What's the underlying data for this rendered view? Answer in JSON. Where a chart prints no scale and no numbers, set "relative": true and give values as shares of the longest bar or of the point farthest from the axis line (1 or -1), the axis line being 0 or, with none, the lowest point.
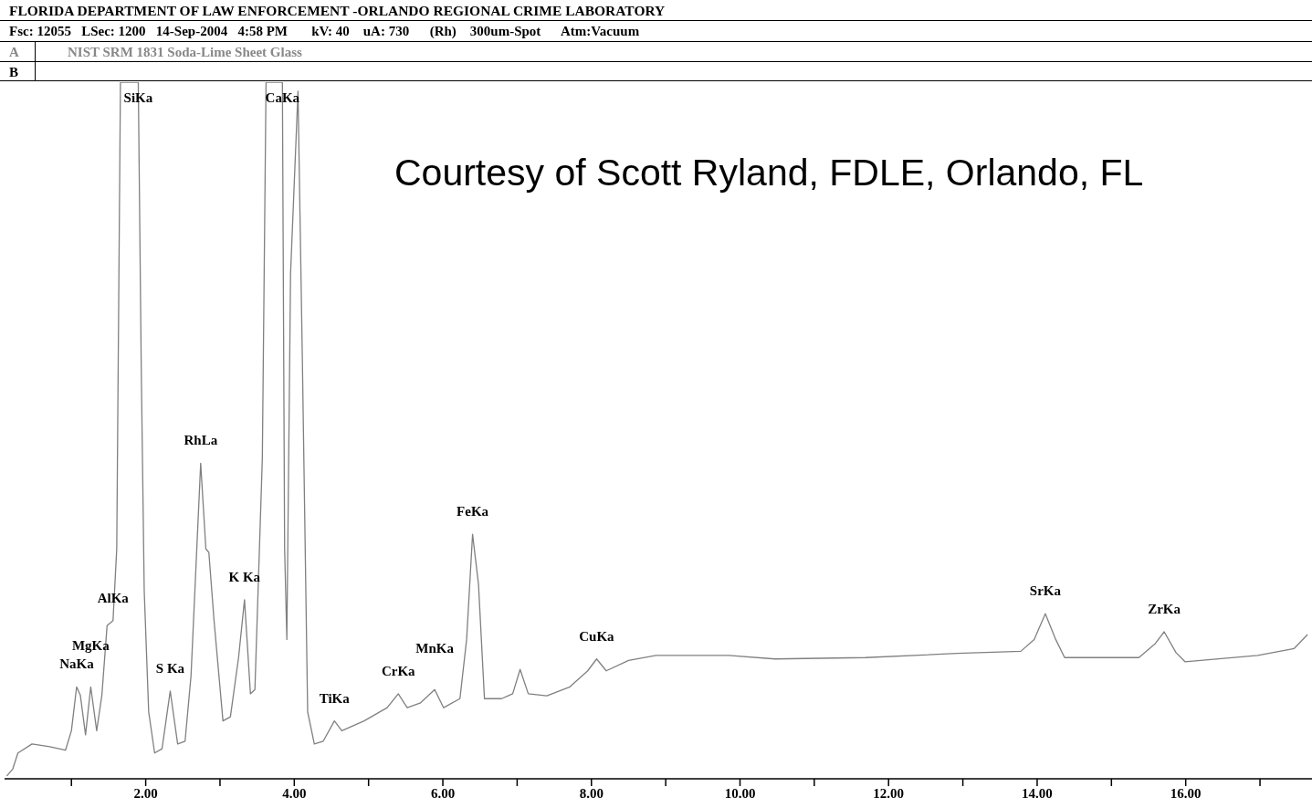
{
  "chart_data": {
    "type": "line",
    "title": "FLORIDA DEPARTMENT OF LAW ENFORCEMENT -ORLANDO REGIONAL CRIME LABORATORY",
    "subtitle": "Fsc: 12055   LSec: 1200   14-Sep-2004   4:58 PM       kV: 40    uA: 730      (Rh)    300um-Spot      Atm:Vacuum",
    "relative": true,
    "color": "#808080",
    "x": [
      0.13,
      0.21,
      0.28,
      0.47,
      0.71,
      0.92,
      1.0,
      1.07,
      1.12,
      1.19,
      1.26,
      1.34,
      1.41,
      1.48,
      1.56,
      1.61,
      1.66,
      1.9,
      1.94,
      1.98,
      2.04,
      2.12,
      2.22,
      2.33,
      2.43,
      2.53,
      2.61,
      2.74,
      2.81,
      2.85,
      2.92,
      3.04,
      3.14,
      3.25,
      3.33,
      3.41,
      3.47,
      3.57,
      3.62,
      3.84,
      3.87,
      3.9,
      3.95,
      4.05,
      4.11,
      4.18,
      4.27,
      4.39,
      4.54,
      4.64,
      4.94,
      5.25,
      5.4,
      5.52,
      5.7,
      5.89,
      6.01,
      6.23,
      6.32,
      6.4,
      6.48,
      6.56,
      6.79,
      6.94,
      7.04,
      7.15,
      7.4,
      7.71,
      7.95,
      8.07,
      8.2,
      8.5,
      8.87,
      9.85,
      10.47,
      11.69,
      12.92,
      13.78,
      13.96,
      14.11,
      14.25,
      14.37,
      15.37,
      15.59,
      15.71,
      15.87,
      15.99,
      16.97,
      17.46,
      17.64
    ],
    "values": [
      0.004,
      0.014,
      0.037,
      0.05,
      0.046,
      0.041,
      0.069,
      0.132,
      0.12,
      0.063,
      0.132,
      0.069,
      0.12,
      0.22,
      0.227,
      0.33,
      1,
      1,
      0.59,
      0.27,
      0.096,
      0.037,
      0.043,
      0.126,
      0.05,
      0.054,
      0.148,
      0.453,
      0.33,
      0.325,
      0.227,
      0.083,
      0.089,
      0.174,
      0.257,
      0.122,
      0.128,
      0.46,
      1,
      1,
      0.33,
      0.2,
      0.725,
      0.987,
      0.594,
      0.096,
      0.05,
      0.054,
      0.083,
      0.069,
      0.083,
      0.102,
      0.122,
      0.102,
      0.109,
      0.128,
      0.102,
      0.115,
      0.2,
      0.351,
      0.279,
      0.115,
      0.115,
      0.122,
      0.157,
      0.122,
      0.119,
      0.132,
      0.155,
      0.172,
      0.155,
      0.17,
      0.177,
      0.177,
      0.172,
      0.174,
      0.18,
      0.183,
      0.2,
      0.237,
      0.2,
      0.174,
      0.174,
      0.194,
      0.211,
      0.181,
      0.168,
      0.177,
      0.187,
      0.207
    ],
    "xlim": [
      0.1,
      17.7
    ],
    "xticks": [
      {
        "value": 1,
        "label": null
      },
      {
        "value": 2,
        "label": "2.00"
      },
      {
        "value": 3,
        "label": null
      },
      {
        "value": 4,
        "label": "4.00"
      },
      {
        "value": 5,
        "label": null
      },
      {
        "value": 6,
        "label": "6.00"
      },
      {
        "value": 7,
        "label": null
      },
      {
        "value": 8,
        "label": "8.00"
      },
      {
        "value": 9,
        "label": null
      },
      {
        "value": 10,
        "label": "10.00"
      },
      {
        "value": 11,
        "label": null
      },
      {
        "value": 12,
        "label": "12.00"
      },
      {
        "value": 13,
        "label": null
      },
      {
        "value": 14,
        "label": "14.00"
      },
      {
        "value": 15,
        "label": null
      },
      {
        "value": 16,
        "label": "16.00"
      },
      {
        "value": 17,
        "label": null
      }
    ],
    "annotations": [
      "A",
      "NIST SRM 1831 Soda-Lime Sheet Glass",
      "B",
      "Courtesy of Scott Ryland, FDLE, Orlando, FL",
      {
        "text": "NaKa",
        "x": 1.07,
        "y": 0.132
      },
      {
        "text": "MgKa",
        "x": 1.26,
        "y": 0.132
      },
      {
        "text": "AlKa",
        "x": 1.56,
        "y": 0.227
      },
      {
        "text": "SiKa",
        "x": 1.9,
        "y": 1
      },
      {
        "text": "S Ka",
        "x": 2.33,
        "y": 0.126
      },
      {
        "text": "RhLa",
        "x": 2.74,
        "y": 0.453
      },
      {
        "text": "K Ka",
        "x": 3.33,
        "y": 0.257
      },
      {
        "text": "CaKa",
        "x": 3.84,
        "y": 1
      },
      {
        "text": "TiKa",
        "x": 4.54,
        "y": 0.083
      },
      {
        "text": "CrKa",
        "x": 5.4,
        "y": 0.122
      },
      {
        "text": "MnKa",
        "x": 5.89,
        "y": 0.128
      },
      {
        "text": "FeKa",
        "x": 6.4,
        "y": 0.351
      },
      {
        "text": "CuKa",
        "x": 8.07,
        "y": 0.172
      },
      {
        "text": "SrKa",
        "x": 14.11,
        "y": 0.237
      },
      {
        "text": "ZrKa",
        "x": 15.71,
        "y": 0.211
      }
    ]
  }
}
